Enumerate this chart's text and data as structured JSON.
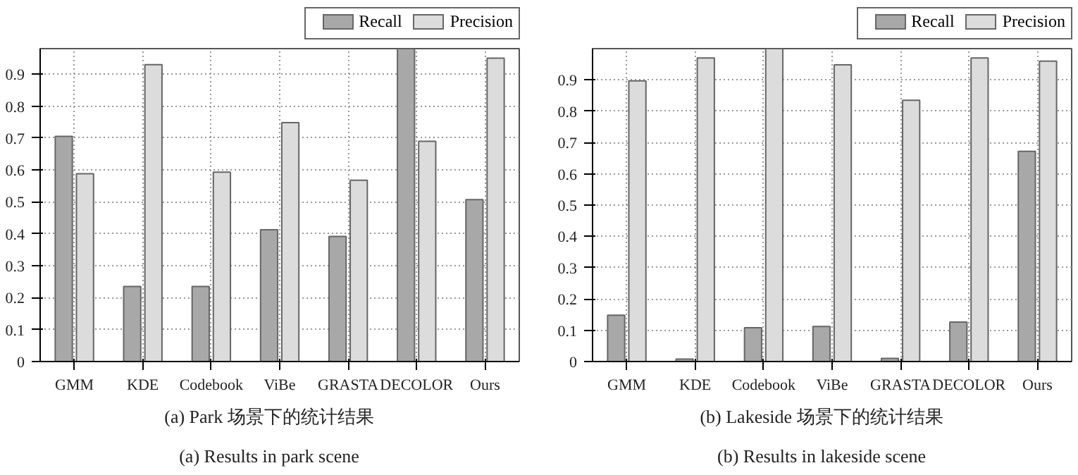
{
  "chart_data": [
    {
      "type": "bar",
      "title": "(a) Park 场景下的统计结果",
      "subtitle": "(a) Results in park scene",
      "categories": [
        "GMM",
        "KDE",
        "Codebook",
        "ViBe",
        "GRASTA",
        "DECOLOR",
        "Ours"
      ],
      "series": [
        {
          "name": "Recall",
          "color": "#a8a8a8",
          "values": [
            0.705,
            0.235,
            0.235,
            0.413,
            0.392,
            0.98,
            0.507
          ]
        },
        {
          "name": "Precision",
          "color": "#dcdcdc",
          "values": [
            0.588,
            0.93,
            0.593,
            0.748,
            0.568,
            0.69,
            0.95
          ]
        }
      ],
      "ylim": [
        0,
        0.98
      ],
      "yticks": [
        0,
        0.1,
        0.2,
        0.3,
        0.4,
        0.5,
        0.6,
        0.7,
        0.8,
        0.9
      ],
      "grid": true,
      "legend": "top right"
    },
    {
      "type": "bar",
      "title": "(b) Lakeside 场景下的统计结果",
      "subtitle": "(b) Results in lakeside scene",
      "categories": [
        "GMM",
        "KDE",
        "Codebook",
        "ViBe",
        "GRASTA",
        "DECOLOR",
        "Ours"
      ],
      "series": [
        {
          "name": "Recall",
          "color": "#a8a8a8",
          "values": [
            0.148,
            0.008,
            0.108,
            0.112,
            0.01,
            0.126,
            0.672
          ]
        },
        {
          "name": "Precision",
          "color": "#dcdcdc",
          "values": [
            0.897,
            0.97,
            1.0,
            0.948,
            0.835,
            0.97,
            0.96
          ]
        }
      ],
      "ylim": [
        0,
        1.0
      ],
      "yticks": [
        0,
        0.1,
        0.2,
        0.3,
        0.4,
        0.5,
        0.6,
        0.7,
        0.8,
        0.9
      ],
      "grid": true,
      "legend": "top right"
    }
  ]
}
